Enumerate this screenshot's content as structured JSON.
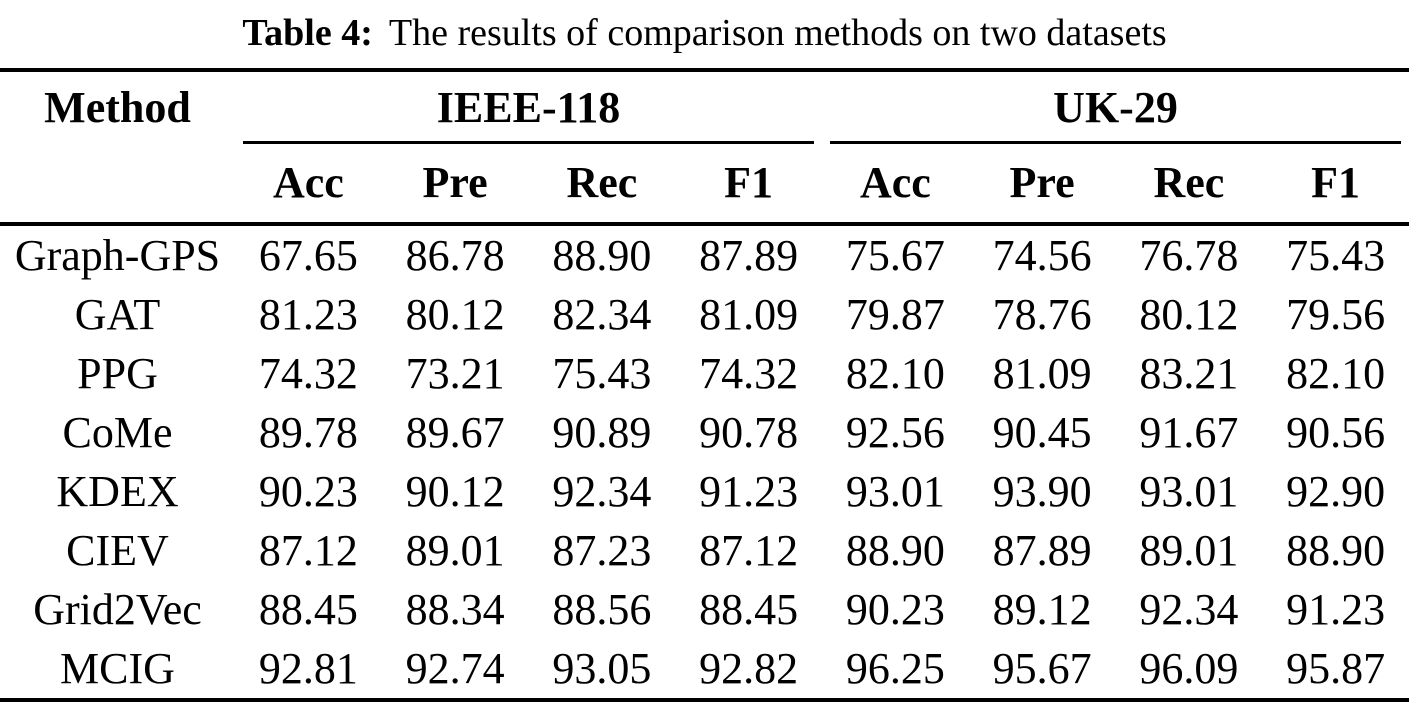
{
  "title": {
    "label": "Table 4:",
    "caption": "The results of comparison methods on two datasets"
  },
  "colors": {
    "text": "#000000",
    "background": "#ffffff"
  },
  "table": {
    "method_header": "Method",
    "groups": [
      {
        "label": "IEEE-118"
      },
      {
        "label": "UK-29"
      }
    ],
    "metric_headers": [
      "Acc",
      "Pre",
      "Rec",
      "F1",
      "Acc",
      "Pre",
      "Rec",
      "F1"
    ],
    "rows": [
      {
        "method": "Graph-GPS",
        "values": [
          "67.65",
          "86.78",
          "88.90",
          "87.89",
          "75.67",
          "74.56",
          "76.78",
          "75.43"
        ]
      },
      {
        "method": "GAT",
        "values": [
          "81.23",
          "80.12",
          "82.34",
          "81.09",
          "79.87",
          "78.76",
          "80.12",
          "79.56"
        ]
      },
      {
        "method": "PPG",
        "values": [
          "74.32",
          "73.21",
          "75.43",
          "74.32",
          "82.10",
          "81.09",
          "83.21",
          "82.10"
        ]
      },
      {
        "method": "CoMe",
        "values": [
          "89.78",
          "89.67",
          "90.89",
          "90.78",
          "92.56",
          "90.45",
          "91.67",
          "90.56"
        ]
      },
      {
        "method": "KDEX",
        "values": [
          "90.23",
          "90.12",
          "92.34",
          "91.23",
          "93.01",
          "93.90",
          "93.01",
          "92.90"
        ]
      },
      {
        "method": "CIEV",
        "values": [
          "87.12",
          "89.01",
          "87.23",
          "87.12",
          "88.90",
          "87.89",
          "89.01",
          "88.90"
        ]
      },
      {
        "method": "Grid2Vec",
        "values": [
          "88.45",
          "88.34",
          "88.56",
          "88.45",
          "90.23",
          "89.12",
          "92.34",
          "91.23"
        ]
      },
      {
        "method": "MCIG",
        "values": [
          "92.81",
          "92.74",
          "93.05",
          "92.82",
          "96.25",
          "95.67",
          "96.09",
          "95.87"
        ]
      }
    ]
  }
}
